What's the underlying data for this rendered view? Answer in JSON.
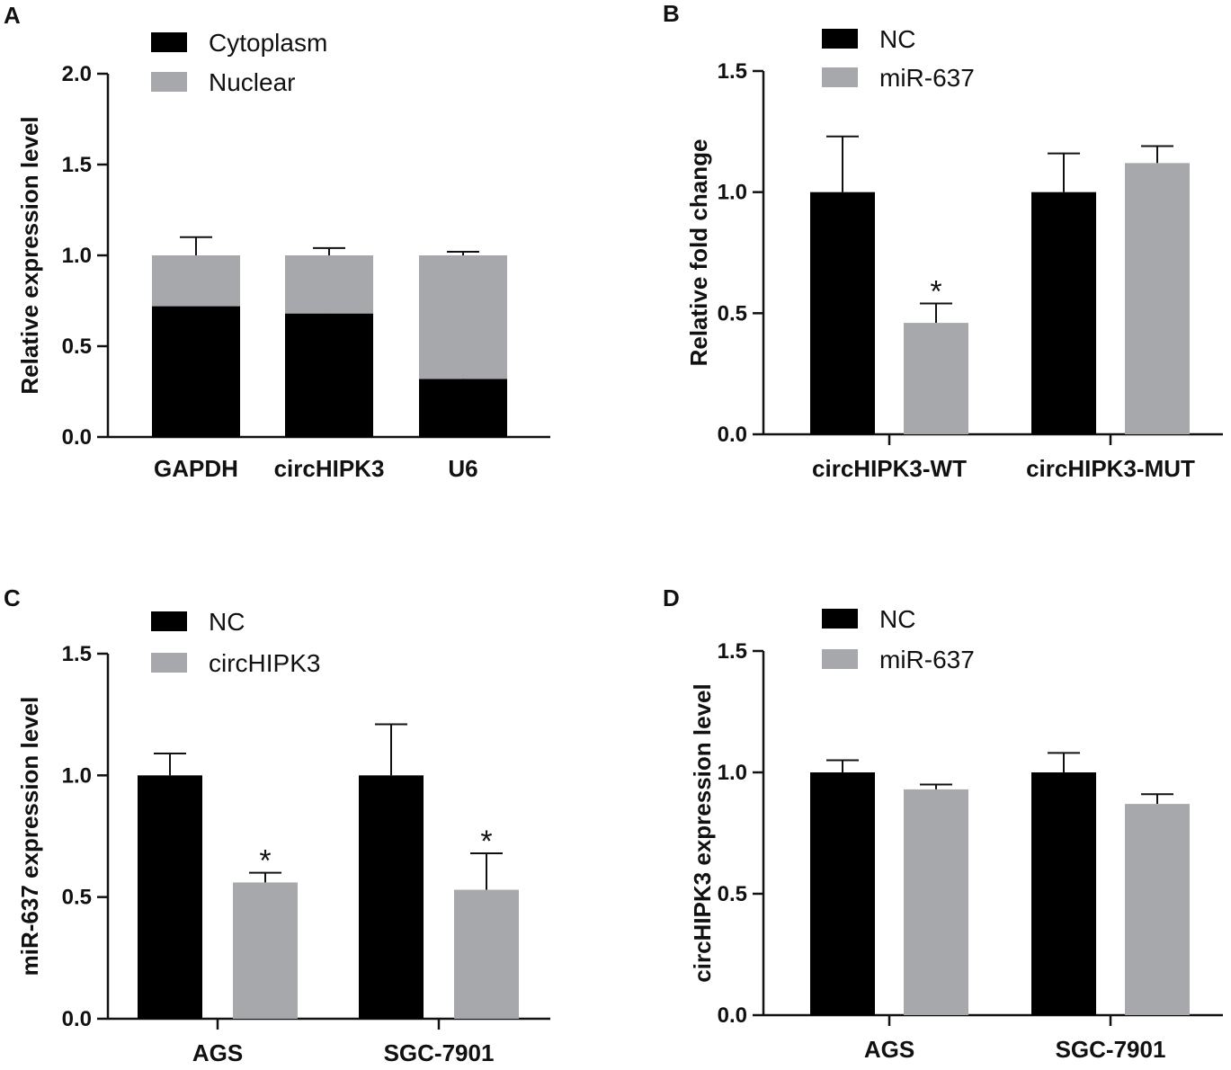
{
  "colors": {
    "series_dark": "#000000",
    "series_light": "#a6a8ab",
    "axis": "#111111"
  },
  "chart_data": [
    {
      "panel": "A",
      "type": "bar",
      "stacked": true,
      "ylabel": "Relative expression level",
      "ylim": [
        0,
        2.0
      ],
      "yticks": [
        "0.0",
        "0.5",
        "1.0",
        "1.5",
        "2.0"
      ],
      "categories": [
        "GAPDH",
        "circHIPK3",
        "U6"
      ],
      "series": [
        {
          "name": "Cytoplasm",
          "color": "#000000",
          "values": [
            0.72,
            0.68,
            0.32
          ],
          "errors": [
            0.05,
            0.03,
            0.06
          ]
        },
        {
          "name": "Nuclear",
          "color": "#a6a8ab",
          "values": [
            0.28,
            0.32,
            0.68
          ],
          "errors": [
            0.1,
            0.04,
            0.02
          ]
        }
      ],
      "legend": "top-left",
      "significance": []
    },
    {
      "panel": "B",
      "type": "bar",
      "stacked": false,
      "ylabel": "Relative fold change",
      "ylim": [
        0,
        1.5
      ],
      "yticks": [
        "0.0",
        "0.5",
        "1.0",
        "1.5"
      ],
      "categories": [
        "circHIPK3-WT",
        "circHIPK3-MUT"
      ],
      "series": [
        {
          "name": "NC",
          "color": "#000000",
          "values": [
            1.0,
            1.0
          ],
          "errors": [
            0.23,
            0.16
          ]
        },
        {
          "name": "miR-637",
          "color": "#a6a8ab",
          "values": [
            0.46,
            1.12
          ],
          "errors": [
            0.08,
            0.07
          ]
        }
      ],
      "legend": "top-left",
      "significance": [
        {
          "category": 0,
          "series": 1,
          "label": "*"
        }
      ]
    },
    {
      "panel": "C",
      "type": "bar",
      "stacked": false,
      "ylabel": "miR-637 expression level",
      "ylim": [
        0,
        1.5
      ],
      "yticks": [
        "0.0",
        "0.5",
        "1.0",
        "1.5"
      ],
      "categories": [
        "AGS",
        "SGC-7901"
      ],
      "series": [
        {
          "name": "NC",
          "color": "#000000",
          "values": [
            1.0,
            1.0
          ],
          "errors": [
            0.09,
            0.21
          ]
        },
        {
          "name": "circHIPK3",
          "color": "#a6a8ab",
          "values": [
            0.56,
            0.53
          ],
          "errors": [
            0.04,
            0.15
          ]
        }
      ],
      "legend": "top-left",
      "significance": [
        {
          "category": 0,
          "series": 1,
          "label": "*"
        },
        {
          "category": 1,
          "series": 1,
          "label": "*"
        }
      ]
    },
    {
      "panel": "D",
      "type": "bar",
      "stacked": false,
      "ylabel": "circHIPK3 expression level",
      "ylim": [
        0,
        1.5
      ],
      "yticks": [
        "0.0",
        "0.5",
        "1.0",
        "1.5"
      ],
      "categories": [
        "AGS",
        "SGC-7901"
      ],
      "series": [
        {
          "name": "NC",
          "color": "#000000",
          "values": [
            1.0,
            1.0
          ],
          "errors": [
            0.05,
            0.08
          ]
        },
        {
          "name": "miR-637",
          "color": "#a6a8ab",
          "values": [
            0.93,
            0.87
          ],
          "errors": [
            0.02,
            0.04
          ]
        }
      ],
      "legend": "top-left",
      "significance": []
    }
  ]
}
